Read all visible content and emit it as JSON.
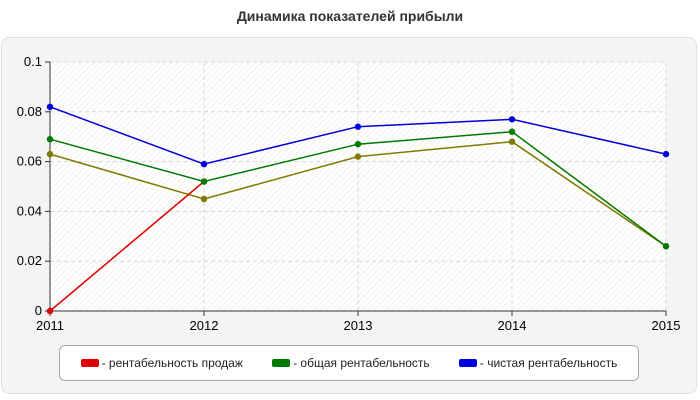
{
  "chart_data": {
    "type": "line",
    "title": "Динамика показателей прибыли",
    "x": [
      "2011",
      "2012",
      "2013",
      "2014",
      "2015"
    ],
    "ylim": [
      0,
      0.1
    ],
    "yticks": [
      "0",
      "0.02",
      "0.04",
      "0.06",
      "0.08",
      "0.1"
    ],
    "grid": true,
    "legend_position": "bottom",
    "series": [
      {
        "name": "- рентабельность продаж",
        "color": "#dd0000",
        "values": [
          0,
          0.052,
          null,
          null,
          null
        ]
      },
      {
        "name": "- общая рентабельность",
        "color": "#007a00",
        "values": [
          0.069,
          0.052,
          0.067,
          0.072,
          0.026
        ]
      },
      {
        "name": "- чистая рентабельность",
        "color": "#0000dd",
        "values": [
          0.082,
          0.059,
          0.074,
          0.077,
          0.063
        ]
      },
      {
        "name": "",
        "color": "#807a00",
        "values": [
          0.063,
          0.045,
          0.062,
          0.068,
          0.026
        ]
      }
    ]
  }
}
